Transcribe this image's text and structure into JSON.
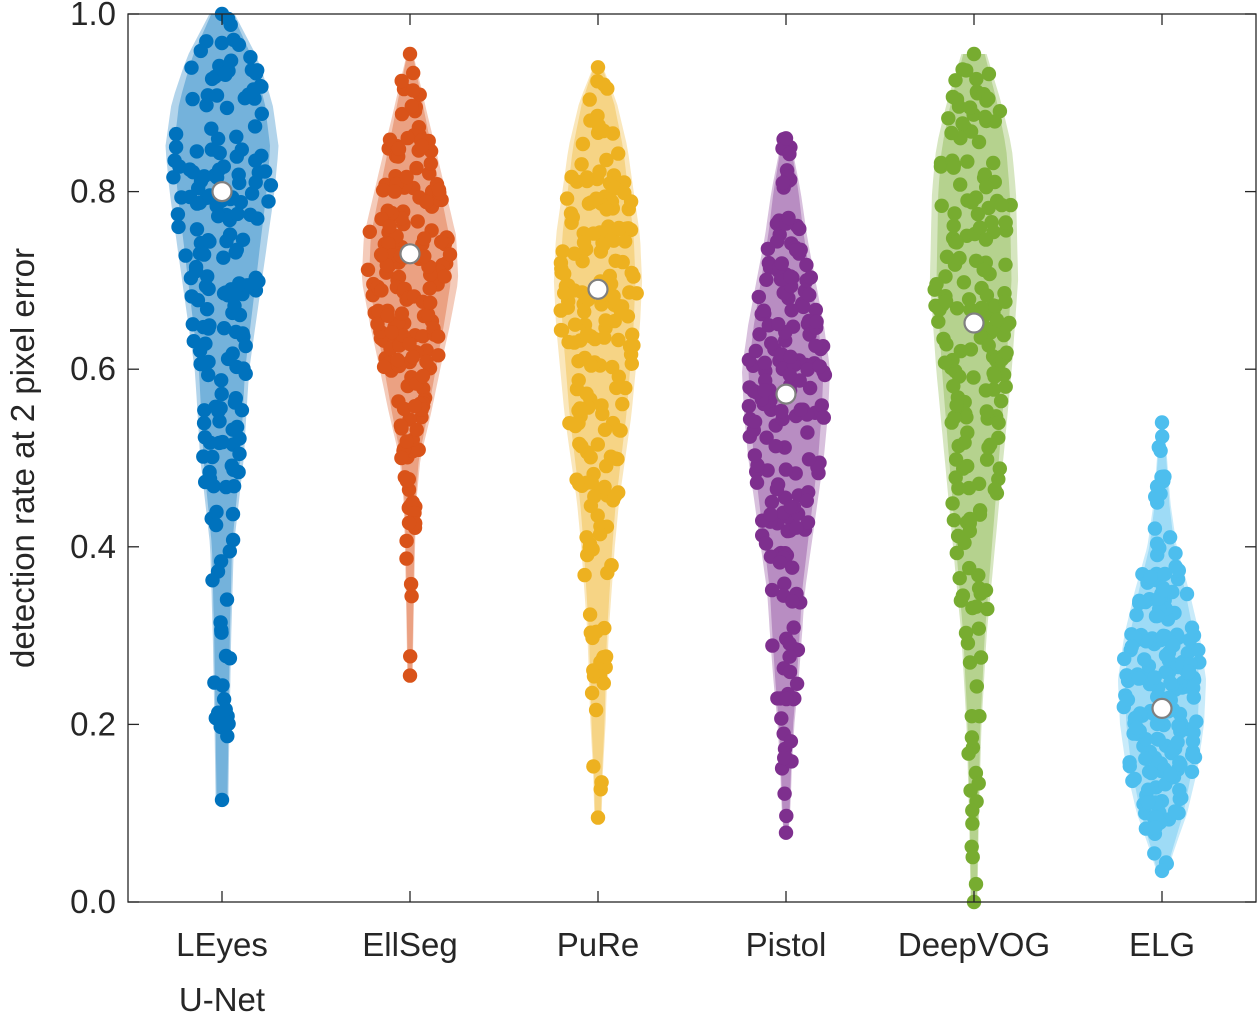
{
  "chart_data": {
    "type": "violin",
    "title": "",
    "xlabel": "",
    "ylabel": "detection rate at 2 pixel error",
    "ylim": [
      0.0,
      1.0
    ],
    "yticks": [
      0.0,
      0.2,
      0.4,
      0.6,
      0.8,
      1.0
    ],
    "ytick_labels": [
      "0.0",
      "0.2",
      "0.4",
      "0.6",
      "0.8",
      "1.0"
    ],
    "grid": false,
    "legend": "none",
    "series": [
      {
        "label_lines": [
          "LEyes",
          "U-Net"
        ],
        "color": "#0072BD",
        "median": 0.8,
        "min": 0.115,
        "max": 1.0,
        "n_points": 200,
        "density": [
          [
            0.11,
            0.015
          ],
          [
            0.2,
            0.018
          ],
          [
            0.3,
            0.022
          ],
          [
            0.4,
            0.028
          ],
          [
            0.45,
            0.04
          ],
          [
            0.5,
            0.052
          ],
          [
            0.55,
            0.058
          ],
          [
            0.6,
            0.065
          ],
          [
            0.65,
            0.08
          ],
          [
            0.7,
            0.095
          ],
          [
            0.75,
            0.11
          ],
          [
            0.8,
            0.125
          ],
          [
            0.85,
            0.135
          ],
          [
            0.9,
            0.12
          ],
          [
            0.95,
            0.085
          ],
          [
            1.0,
            0.03
          ]
        ]
      },
      {
        "label_lines": [
          "EllSeg"
        ],
        "color": "#D95319",
        "median": 0.73,
        "min": 0.255,
        "max": 0.955,
        "n_points": 200,
        "density": [
          [
            0.25,
            0.006
          ],
          [
            0.3,
            0.008
          ],
          [
            0.4,
            0.012
          ],
          [
            0.45,
            0.015
          ],
          [
            0.5,
            0.025
          ],
          [
            0.55,
            0.05
          ],
          [
            0.6,
            0.072
          ],
          [
            0.65,
            0.095
          ],
          [
            0.7,
            0.115
          ],
          [
            0.75,
            0.11
          ],
          [
            0.8,
            0.085
          ],
          [
            0.85,
            0.06
          ],
          [
            0.9,
            0.035
          ],
          [
            0.95,
            0.01
          ]
        ]
      },
      {
        "label_lines": [
          "PuRe"
        ],
        "color": "#EDB120",
        "median": 0.69,
        "min": 0.095,
        "max": 0.94,
        "n_points": 200,
        "density": [
          [
            0.09,
            0.008
          ],
          [
            0.15,
            0.012
          ],
          [
            0.2,
            0.018
          ],
          [
            0.3,
            0.025
          ],
          [
            0.4,
            0.04
          ],
          [
            0.45,
            0.05
          ],
          [
            0.5,
            0.065
          ],
          [
            0.55,
            0.08
          ],
          [
            0.6,
            0.09
          ],
          [
            0.65,
            0.1
          ],
          [
            0.7,
            0.105
          ],
          [
            0.75,
            0.1
          ],
          [
            0.8,
            0.085
          ],
          [
            0.85,
            0.07
          ],
          [
            0.9,
            0.045
          ],
          [
            0.94,
            0.012
          ]
        ]
      },
      {
        "label_lines": [
          "Pistol"
        ],
        "color": "#7E2F8E",
        "median": 0.572,
        "min": 0.078,
        "max": 0.86,
        "n_points": 200,
        "density": [
          [
            0.07,
            0.004
          ],
          [
            0.1,
            0.01
          ],
          [
            0.15,
            0.014
          ],
          [
            0.2,
            0.02
          ],
          [
            0.25,
            0.03
          ],
          [
            0.3,
            0.038
          ],
          [
            0.35,
            0.045
          ],
          [
            0.4,
            0.06
          ],
          [
            0.45,
            0.075
          ],
          [
            0.5,
            0.09
          ],
          [
            0.55,
            0.1
          ],
          [
            0.6,
            0.105
          ],
          [
            0.65,
            0.09
          ],
          [
            0.7,
            0.07
          ],
          [
            0.75,
            0.05
          ],
          [
            0.8,
            0.035
          ],
          [
            0.86,
            0.01
          ]
        ]
      },
      {
        "label_lines": [
          "DeepVOG"
        ],
        "color": "#77AC30",
        "median": 0.652,
        "min": 0.0,
        "max": 0.955,
        "n_points": 200,
        "density": [
          [
            0.0,
            0.008
          ],
          [
            0.1,
            0.012
          ],
          [
            0.2,
            0.018
          ],
          [
            0.3,
            0.03
          ],
          [
            0.4,
            0.05
          ],
          [
            0.5,
            0.07
          ],
          [
            0.6,
            0.09
          ],
          [
            0.7,
            0.105
          ],
          [
            0.8,
            0.1
          ],
          [
            0.85,
            0.09
          ],
          [
            0.9,
            0.065
          ],
          [
            0.955,
            0.03
          ]
        ]
      },
      {
        "label_lines": [
          "ELG"
        ],
        "color": "#4DBEEE",
        "median": 0.218,
        "min": 0.035,
        "max": 0.54,
        "n_points": 200,
        "density": [
          [
            0.03,
            0.01
          ],
          [
            0.06,
            0.03
          ],
          [
            0.1,
            0.06
          ],
          [
            0.15,
            0.085
          ],
          [
            0.2,
            0.1
          ],
          [
            0.25,
            0.105
          ],
          [
            0.3,
            0.09
          ],
          [
            0.35,
            0.065
          ],
          [
            0.4,
            0.035
          ],
          [
            0.45,
            0.02
          ],
          [
            0.5,
            0.012
          ],
          [
            0.54,
            0.005
          ]
        ]
      }
    ]
  }
}
